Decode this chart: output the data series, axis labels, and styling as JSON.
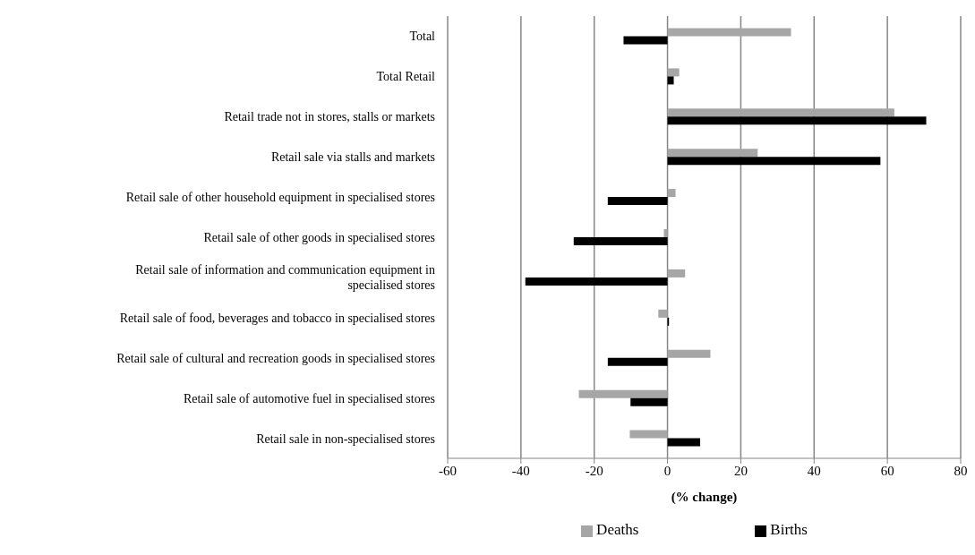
{
  "chart_data": {
    "type": "bar",
    "orientation": "horizontal",
    "xlabel": "(% change)",
    "categories": [
      "Total",
      "Total Retail",
      "Retail trade not in stores, stalls or markets",
      "Retail sale via stalls and markets",
      "Retail sale of other household equipment in specialised stores",
      "Retail sale of other goods in specialised stores",
      "Retail sale of information and communication equipment in specialised stores",
      "Retail sale of food, beverages and tobacco in specialised stores",
      "Retail sale of cultural and recreation goods in specialised stores",
      "Retail sale of automotive fuel in specialised stores",
      "Retail sale in non-specialised stores"
    ],
    "series": [
      {
        "name": "Deaths",
        "color": "#a6a6a6",
        "values": [
          33.7,
          3.2,
          61.9,
          24.6,
          2.2,
          -1.0,
          4.8,
          -2.5,
          11.7,
          -24.2,
          -10.3
        ]
      },
      {
        "name": "Births",
        "color": "#000000",
        "values": [
          -12.0,
          1.7,
          70.6,
          58.1,
          -16.3,
          -25.6,
          -38.8,
          0.4,
          -16.3,
          -10.1,
          8.9
        ]
      }
    ],
    "xlim": [
      -60,
      80
    ],
    "xticks": [
      -60,
      -40,
      -20,
      0,
      20,
      40,
      60,
      80
    ],
    "grid": "x",
    "legend": "bottom"
  }
}
